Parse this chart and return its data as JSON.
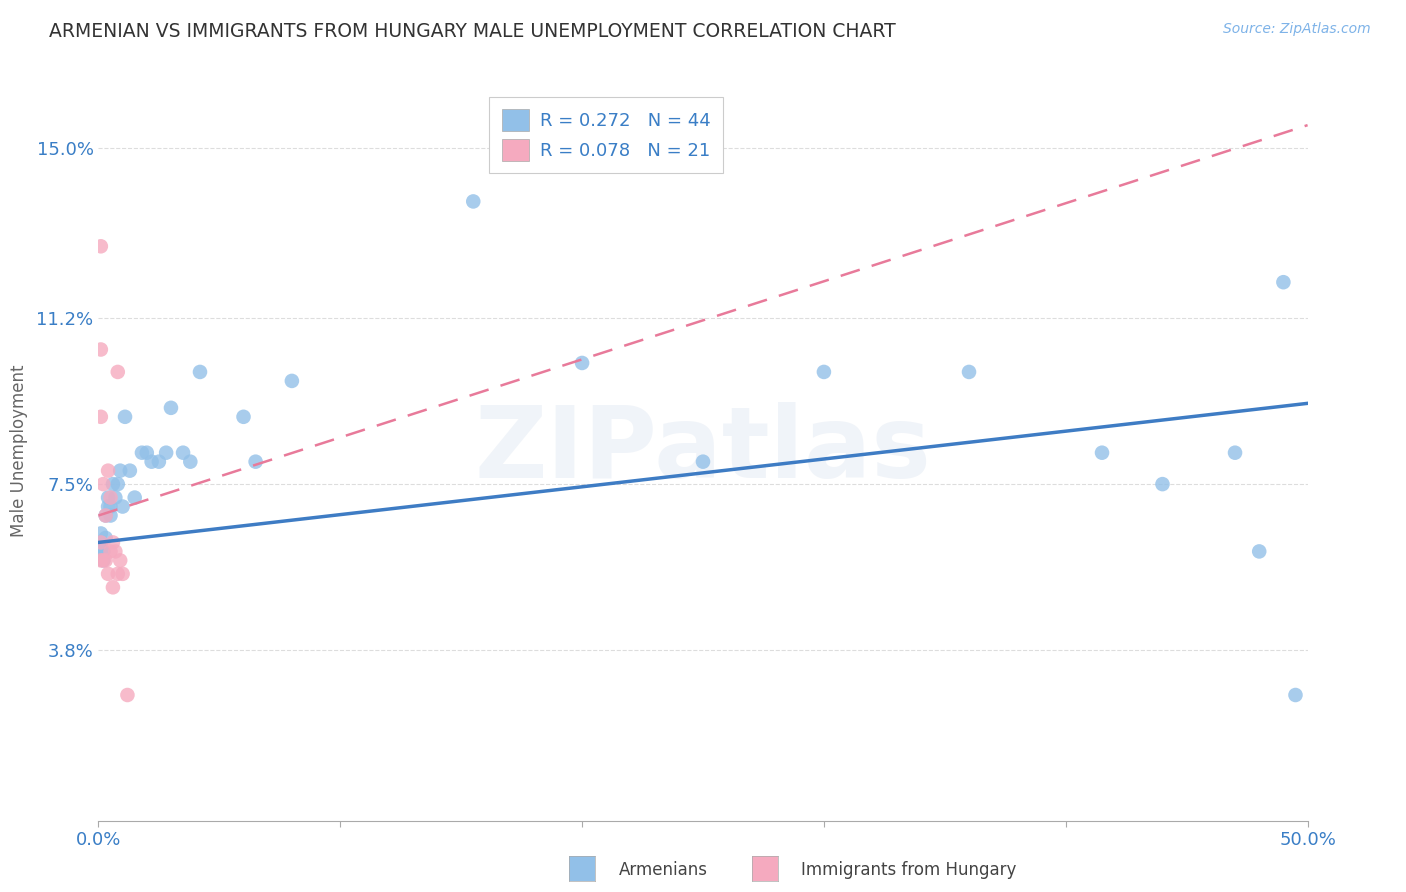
{
  "title": "ARMENIAN VS IMMIGRANTS FROM HUNGARY MALE UNEMPLOYMENT CORRELATION CHART",
  "source": "Source: ZipAtlas.com",
  "ylabel": "Male Unemployment",
  "xlim": [
    0.0,
    0.5
  ],
  "ylim": [
    0.0,
    0.165
  ],
  "yticks": [
    0.038,
    0.075,
    0.112,
    0.15
  ],
  "ytick_labels": [
    "3.8%",
    "7.5%",
    "11.2%",
    "15.0%"
  ],
  "xtick_positions": [
    0.0,
    0.1,
    0.2,
    0.3,
    0.4,
    0.5
  ],
  "xtick_labels_show": [
    "0.0%",
    "",
    "",
    "",
    "",
    "50.0%"
  ],
  "legend_r1": "R = 0.272",
  "legend_n1": "N = 44",
  "legend_r2": "R = 0.078",
  "legend_n2": "N = 21",
  "armenian_color": "#92C0E8",
  "hungary_color": "#F5AABF",
  "trendline_armenian_color": "#3E7CC4",
  "trendline_hungary_color": "#E87A9A",
  "background_color": "#FFFFFF",
  "grid_color": "#DDDDDD",
  "watermark": "ZIPatlas",
  "armenian_points_x": [
    0.001,
    0.001,
    0.001,
    0.001,
    0.002,
    0.002,
    0.002,
    0.003,
    0.003,
    0.004,
    0.004,
    0.005,
    0.005,
    0.006,
    0.007,
    0.008,
    0.009,
    0.01,
    0.011,
    0.013,
    0.015,
    0.018,
    0.02,
    0.022,
    0.025,
    0.028,
    0.03,
    0.035,
    0.038,
    0.042,
    0.06,
    0.065,
    0.08,
    0.155,
    0.2,
    0.25,
    0.3,
    0.36,
    0.415,
    0.44,
    0.47,
    0.48,
    0.49,
    0.495
  ],
  "armenian_points_y": [
    0.06,
    0.06,
    0.062,
    0.064,
    0.058,
    0.06,
    0.06,
    0.063,
    0.068,
    0.07,
    0.072,
    0.068,
    0.07,
    0.075,
    0.072,
    0.075,
    0.078,
    0.07,
    0.09,
    0.078,
    0.072,
    0.082,
    0.082,
    0.08,
    0.08,
    0.082,
    0.092,
    0.082,
    0.08,
    0.1,
    0.09,
    0.08,
    0.098,
    0.138,
    0.102,
    0.08,
    0.1,
    0.1,
    0.082,
    0.075,
    0.082,
    0.06,
    0.12,
    0.028
  ],
  "hungary_points_x": [
    0.001,
    0.001,
    0.001,
    0.001,
    0.001,
    0.002,
    0.002,
    0.003,
    0.003,
    0.004,
    0.004,
    0.005,
    0.005,
    0.006,
    0.006,
    0.007,
    0.008,
    0.008,
    0.009,
    0.01,
    0.012
  ],
  "hungary_points_y": [
    0.128,
    0.105,
    0.09,
    0.062,
    0.058,
    0.075,
    0.058,
    0.068,
    0.058,
    0.078,
    0.055,
    0.072,
    0.06,
    0.062,
    0.052,
    0.06,
    0.055,
    0.1,
    0.058,
    0.055,
    0.028
  ],
  "arm_trend_x0": 0.0,
  "arm_trend_y0": 0.062,
  "arm_trend_x1": 0.5,
  "arm_trend_y1": 0.093,
  "hun_trend_x0": 0.0,
  "hun_trend_y0": 0.068,
  "hun_trend_x1": 0.5,
  "hun_trend_y1": 0.155
}
